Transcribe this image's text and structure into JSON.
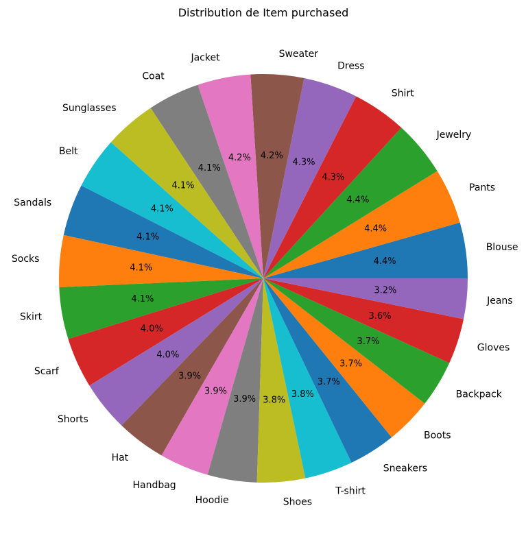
{
  "chart_data": {
    "type": "pie",
    "title": "Distribution de Item purchased",
    "start_angle_deg": 0,
    "direction": "counterclockwise",
    "legend": "none",
    "slices": [
      {
        "label": "Blouse",
        "value": 4.4,
        "pct_label": "4.4%",
        "color": "#1f77b4"
      },
      {
        "label": "Pants",
        "value": 4.4,
        "pct_label": "4.4%",
        "color": "#ff7f0e"
      },
      {
        "label": "Jewelry",
        "value": 4.4,
        "pct_label": "4.4%",
        "color": "#2ca02c"
      },
      {
        "label": "Shirt",
        "value": 4.3,
        "pct_label": "4.3%",
        "color": "#d62728"
      },
      {
        "label": "Dress",
        "value": 4.3,
        "pct_label": "4.3%",
        "color": "#9467bd"
      },
      {
        "label": "Sweater",
        "value": 4.2,
        "pct_label": "4.2%",
        "color": "#8c564b"
      },
      {
        "label": "Jacket",
        "value": 4.2,
        "pct_label": "4.2%",
        "color": "#e377c2"
      },
      {
        "label": "Coat",
        "value": 4.1,
        "pct_label": "4.1%",
        "color": "#7f7f7f"
      },
      {
        "label": "Sunglasses",
        "value": 4.1,
        "pct_label": "4.1%",
        "color": "#bcbd22"
      },
      {
        "label": "Belt",
        "value": 4.1,
        "pct_label": "4.1%",
        "color": "#17becf"
      },
      {
        "label": "Sandals",
        "value": 4.1,
        "pct_label": "4.1%",
        "color": "#1f77b4"
      },
      {
        "label": "Socks",
        "value": 4.1,
        "pct_label": "4.1%",
        "color": "#ff7f0e"
      },
      {
        "label": "Skirt",
        "value": 4.1,
        "pct_label": "4.1%",
        "color": "#2ca02c"
      },
      {
        "label": "Scarf",
        "value": 4.0,
        "pct_label": "4.0%",
        "color": "#d62728"
      },
      {
        "label": "Shorts",
        "value": 4.0,
        "pct_label": "4.0%",
        "color": "#9467bd"
      },
      {
        "label": "Hat",
        "value": 3.9,
        "pct_label": "3.9%",
        "color": "#8c564b"
      },
      {
        "label": "Handbag",
        "value": 3.9,
        "pct_label": "3.9%",
        "color": "#e377c2"
      },
      {
        "label": "Hoodie",
        "value": 3.9,
        "pct_label": "3.9%",
        "color": "#7f7f7f"
      },
      {
        "label": "Shoes",
        "value": 3.8,
        "pct_label": "3.8%",
        "color": "#bcbd22"
      },
      {
        "label": "T-shirt",
        "value": 3.8,
        "pct_label": "3.8%",
        "color": "#17becf"
      },
      {
        "label": "Sneakers",
        "value": 3.7,
        "pct_label": "3.7%",
        "color": "#1f77b4"
      },
      {
        "label": "Boots",
        "value": 3.7,
        "pct_label": "3.7%",
        "color": "#ff7f0e"
      },
      {
        "label": "Backpack",
        "value": 3.7,
        "pct_label": "3.7%",
        "color": "#2ca02c"
      },
      {
        "label": "Gloves",
        "value": 3.6,
        "pct_label": "3.6%",
        "color": "#d62728"
      },
      {
        "label": "Jeans",
        "value": 3.2,
        "pct_label": "3.2%",
        "color": "#9467bd"
      }
    ]
  }
}
